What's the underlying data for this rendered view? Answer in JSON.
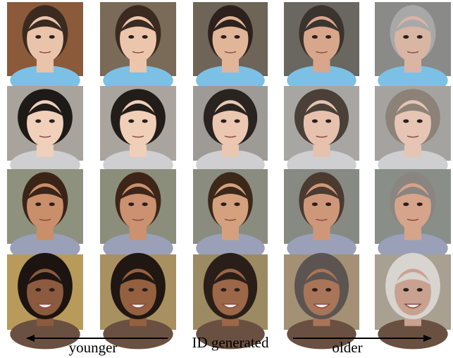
{
  "labels": {
    "left": "younger",
    "center": "ID generated",
    "right": "older"
  }
}
